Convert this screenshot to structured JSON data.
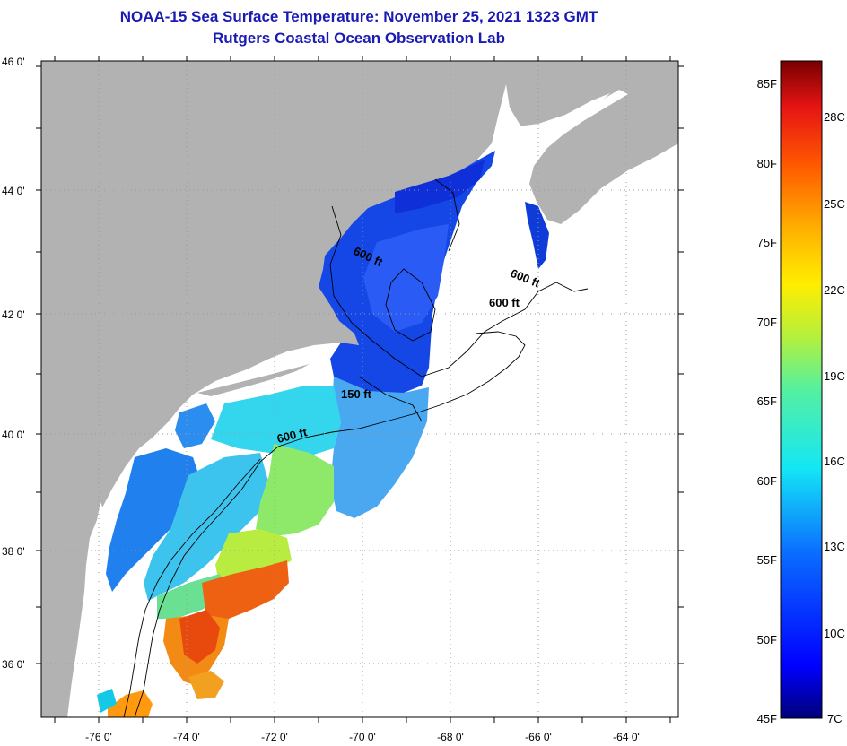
{
  "title": {
    "line1": "NOAA-15 Sea Surface Temperature:  November 25, 2021 1323 GMT",
    "line2": "Rutgers Coastal Ocean Observation Lab"
  },
  "map": {
    "lat_labels": [
      "46 0'",
      "44 0'",
      "42 0'",
      "40 0'",
      "38 0'",
      "36 0'"
    ],
    "lon_labels": [
      "-76 0'",
      "-74 0'",
      "-72 0'",
      "-70 0'",
      "-68 0'",
      "-66 0'",
      "-64 0'"
    ],
    "isobaths": [
      "600 ft",
      "600 ft",
      "600 ft",
      "150 ft",
      "600 ft"
    ]
  },
  "colorbar": {
    "f_labels": [
      "85F",
      "80F",
      "75F",
      "70F",
      "65F",
      "60F",
      "55F",
      "50F",
      "45F"
    ],
    "c_labels": [
      "28C",
      "25C",
      "22C",
      "19C",
      "16C",
      "13C",
      "10C",
      "7C"
    ]
  },
  "colors": {
    "land": "#b2b2b2",
    "title": "#1a1ab4",
    "ocean_nodata": "#ffffff"
  }
}
